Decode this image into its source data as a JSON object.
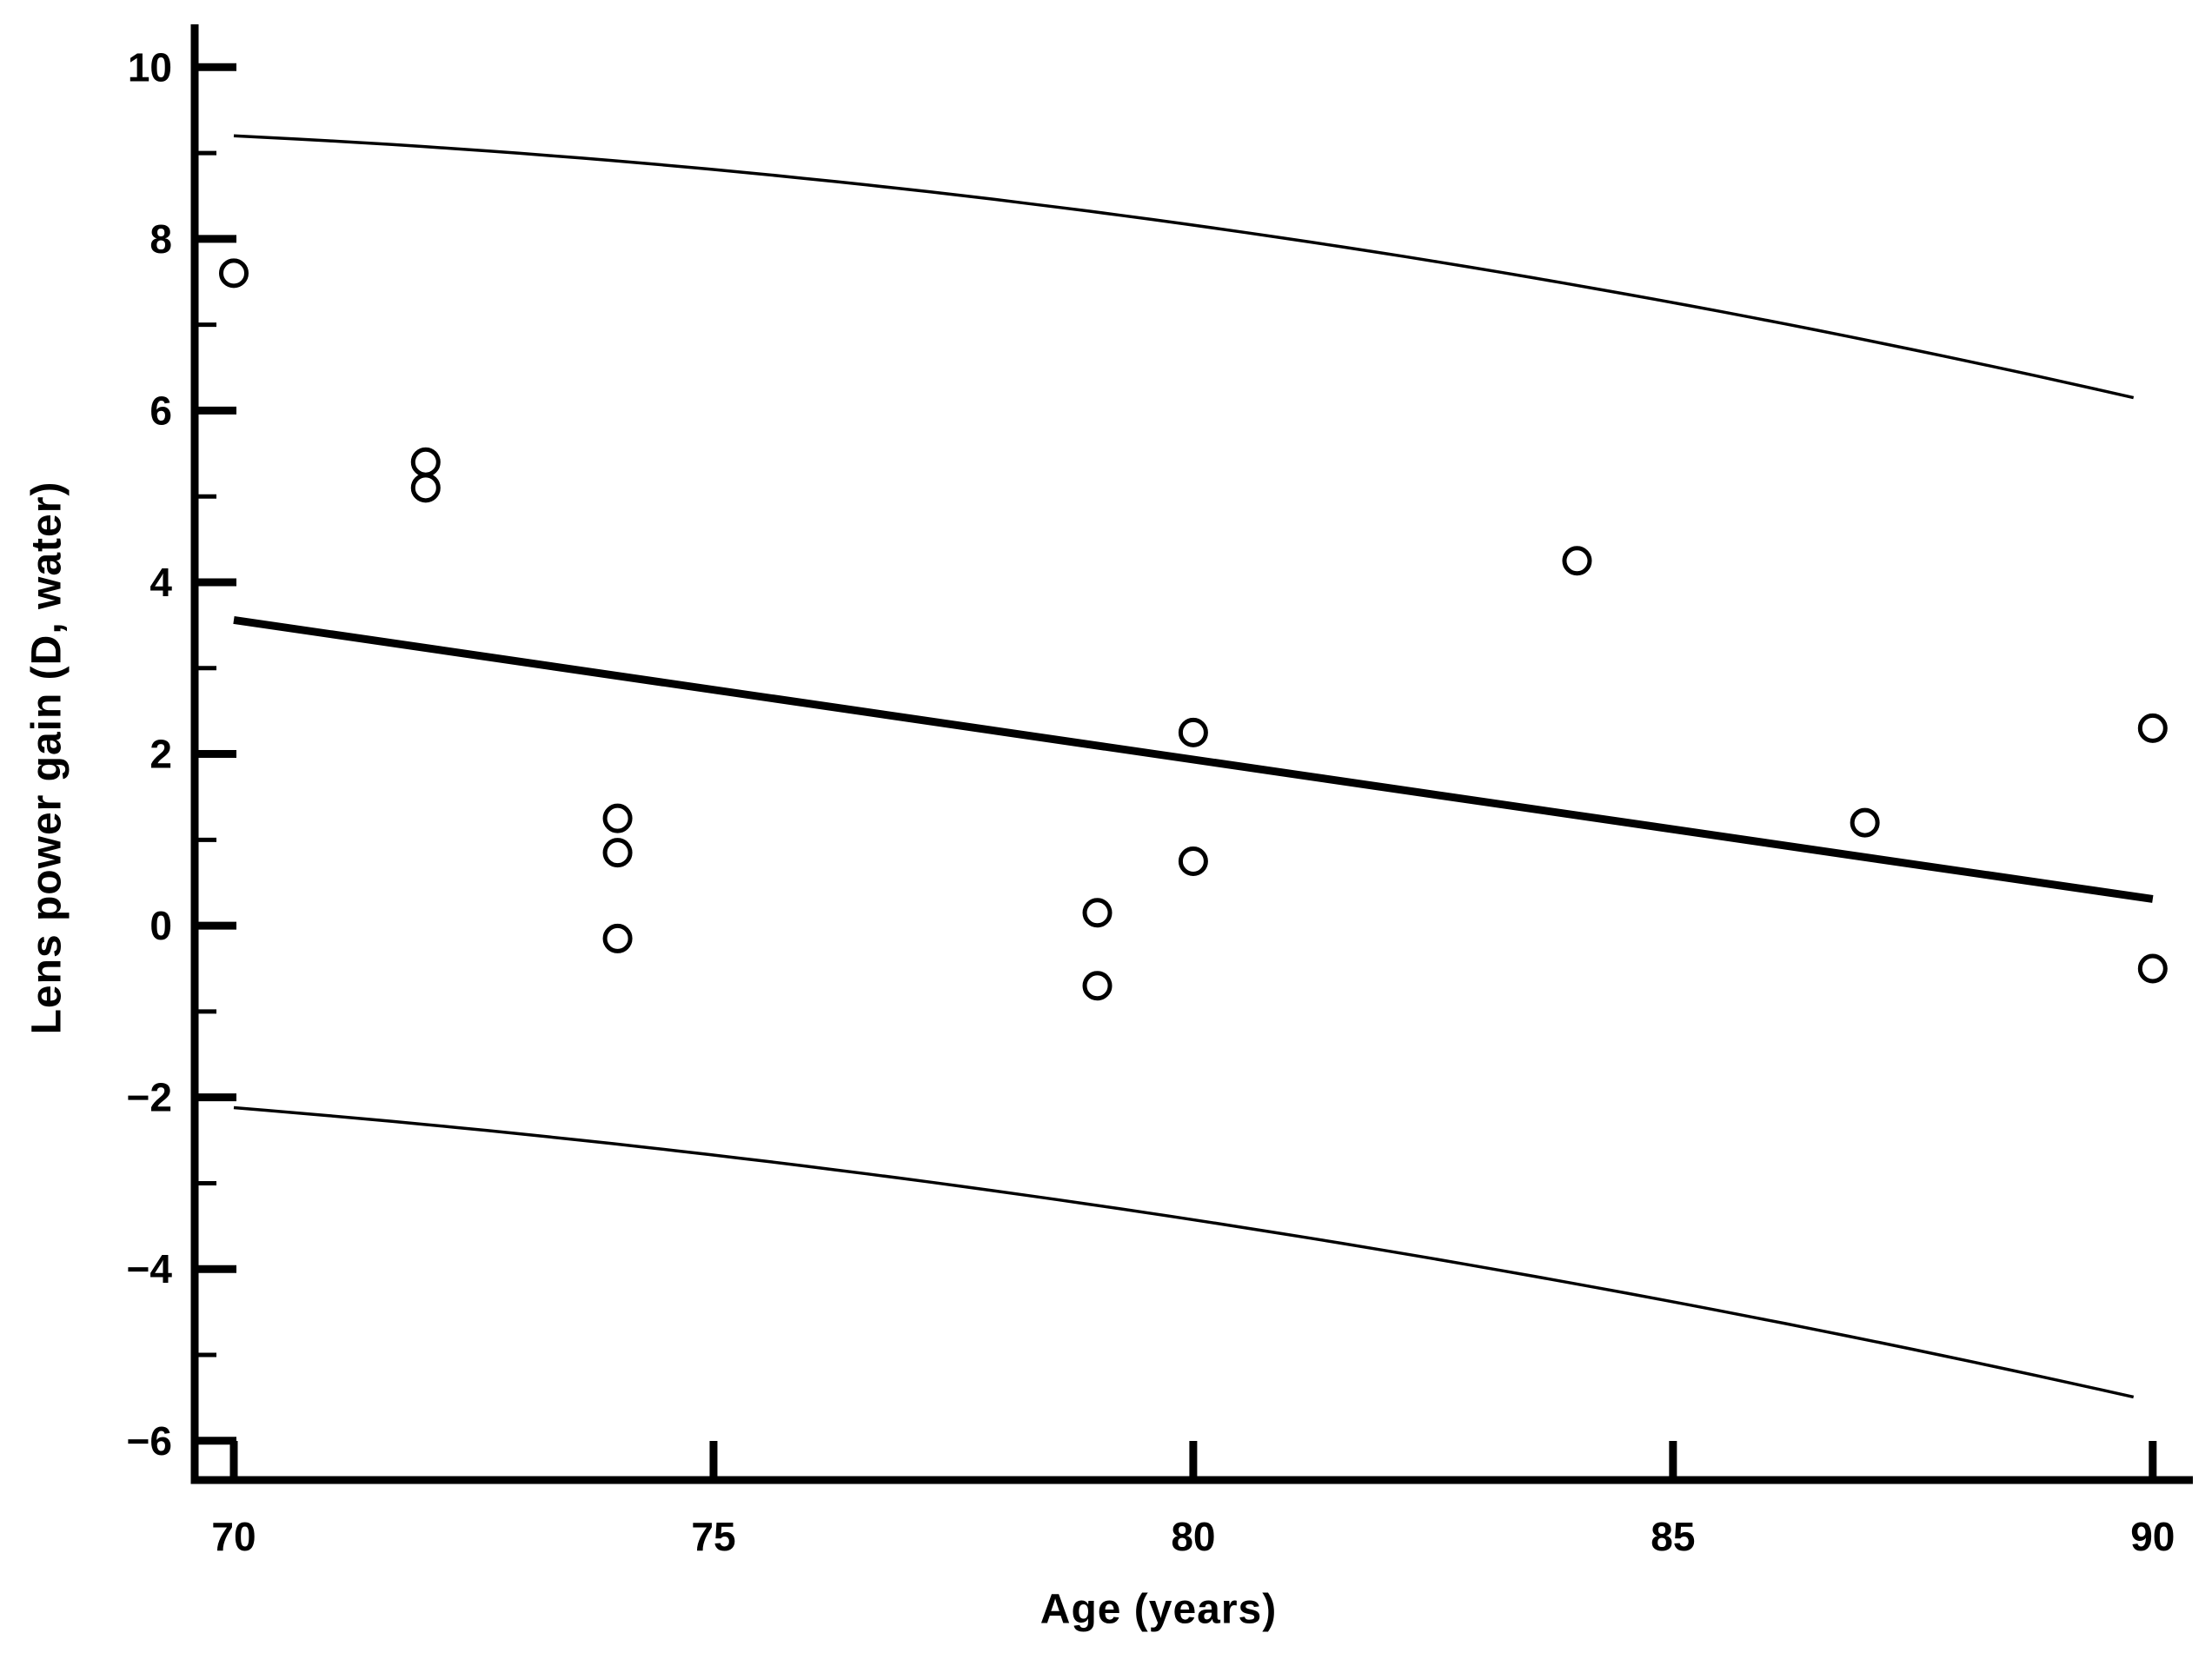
{
  "figure": {
    "background": "#ffffff",
    "ink_color": "#000000"
  },
  "chart_data": {
    "type": "scatter",
    "title": "",
    "xlabel": "Age (years)",
    "ylabel": "Lens power gain (D, water)",
    "xlim": [
      69.6,
      90.45
    ],
    "ylim": [
      -6.45,
      10.5
    ],
    "grid": false,
    "legend": "none",
    "x_tick_values": [
      70,
      75,
      80,
      85,
      90
    ],
    "x_tick_labels": [
      "70",
      "75",
      "80",
      "85",
      "90"
    ],
    "y_major_tick_values": [
      10,
      8,
      6,
      4,
      2,
      0,
      -2,
      -4,
      -6
    ],
    "y_major_tick_labels": [
      "10",
      "8",
      "6",
      "4",
      "2",
      "0",
      "−2",
      "−4",
      "−6"
    ],
    "y_minor_tick_values": [
      9,
      7,
      5,
      3,
      1,
      -1,
      -3,
      -5
    ],
    "marker": "open-circle",
    "points": [
      [
        70,
        7.6
      ],
      [
        72,
        5.4
      ],
      [
        72,
        5.1
      ],
      [
        74,
        1.25
      ],
      [
        74,
        0.85
      ],
      [
        74,
        -0.15
      ],
      [
        79,
        0.15
      ],
      [
        79,
        -0.7
      ],
      [
        80,
        2.25
      ],
      [
        80,
        0.75
      ],
      [
        84,
        4.25
      ],
      [
        87,
        1.2
      ],
      [
        90,
        2.3
      ],
      [
        90,
        -0.5
      ]
    ],
    "regression_line": {
      "x_start": 70,
      "y_start": 3.56,
      "x_end": 90,
      "y_end": 0.31
    },
    "confidence_bands": {
      "upper_anchors": [
        [
          70,
          9.2
        ],
        [
          78,
          8.45
        ],
        [
          89.8,
          6.15
        ]
      ],
      "lower_anchors": [
        [
          70,
          -2.12
        ],
        [
          78,
          -3.1
        ],
        [
          89.8,
          -5.49
        ]
      ]
    }
  }
}
